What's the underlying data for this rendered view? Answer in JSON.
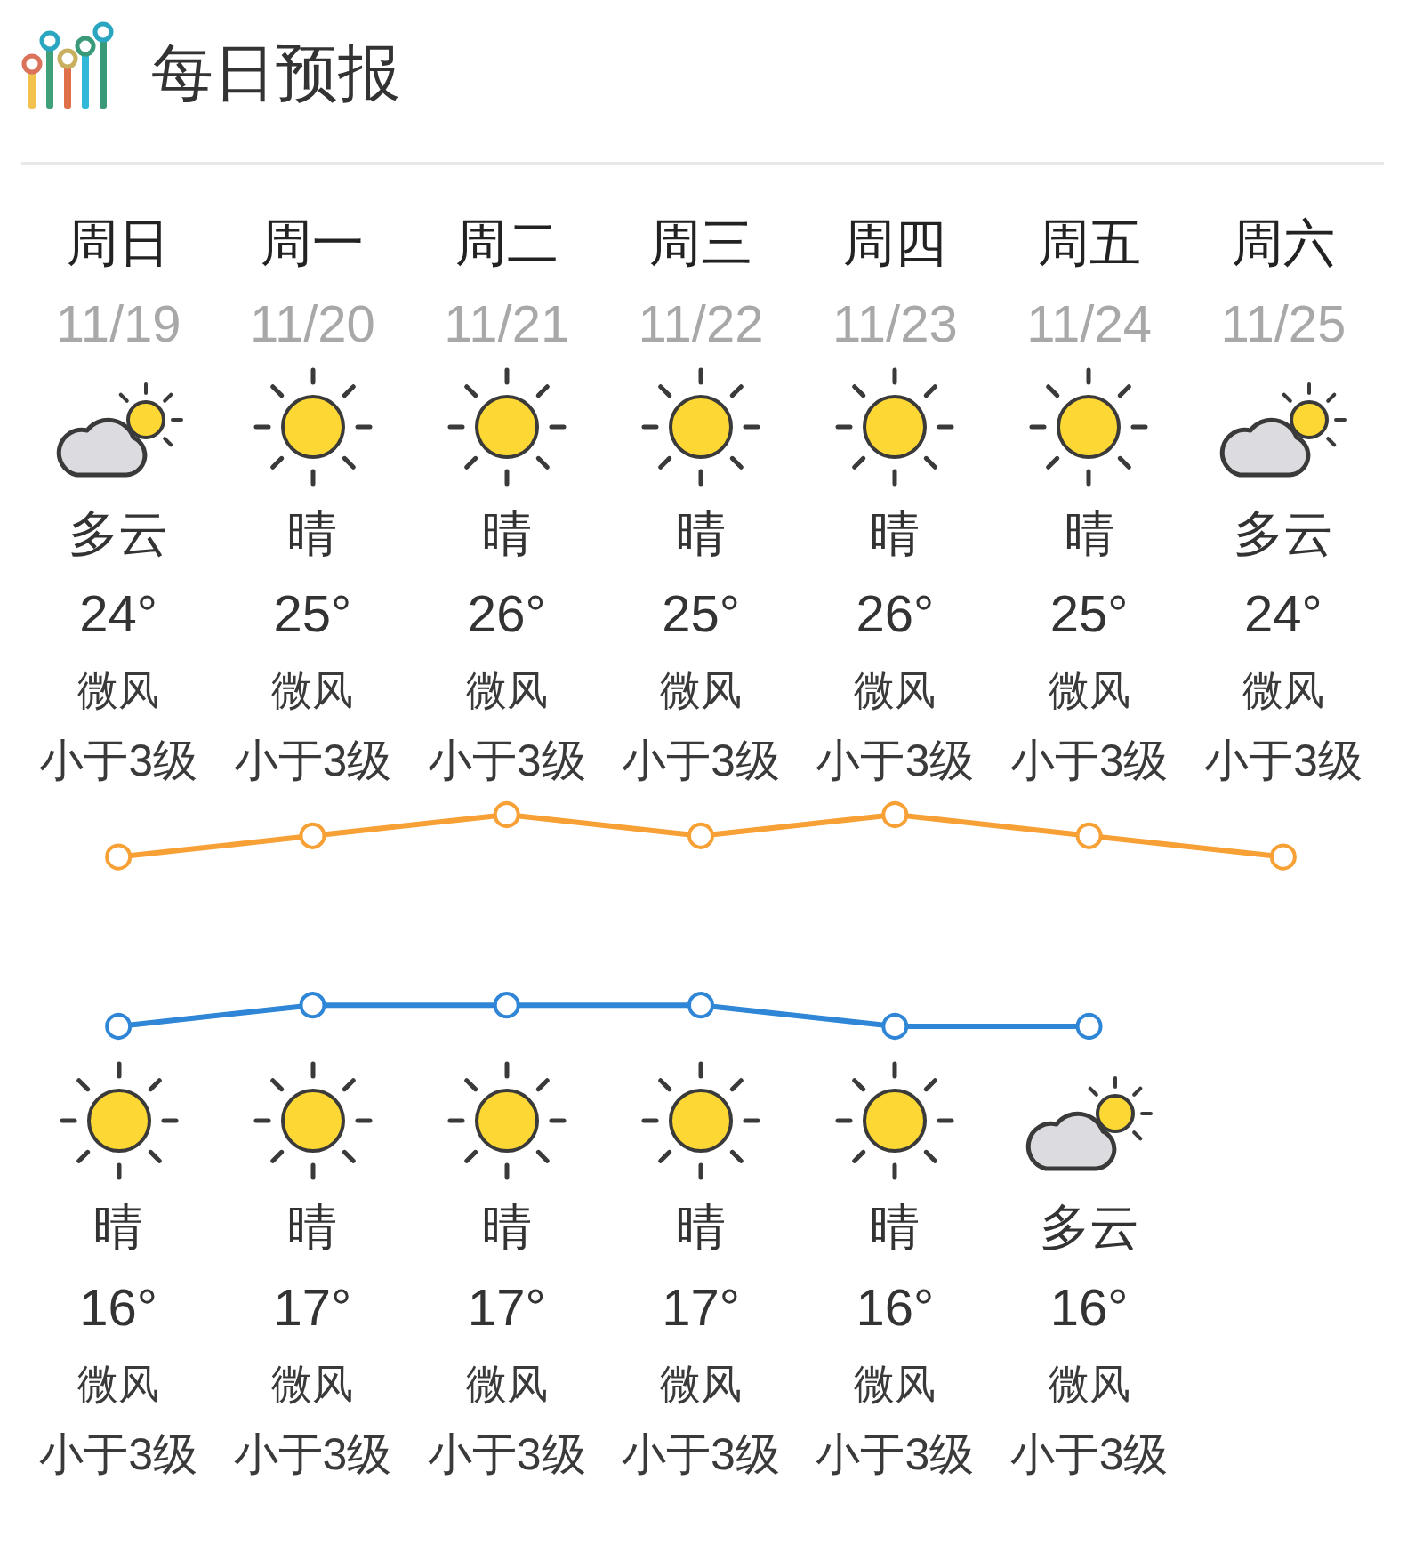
{
  "chart_data": {
    "type": "line",
    "title": "每日预报",
    "categories": [
      "周日",
      "周一",
      "周二",
      "周三",
      "周四",
      "周五",
      "周六"
    ],
    "series": [
      {
        "color": "#f7a035",
        "values": [
          24,
          25,
          26,
          25,
          26,
          25,
          24
        ],
        "value_labels": [
          "24°",
          "25°",
          "26°",
          "25°",
          "26°",
          "25°",
          "24°"
        ]
      },
      {
        "color": "#2f86d6",
        "values": [
          16,
          17,
          17,
          17,
          16,
          16,
          null
        ],
        "value_labels": [
          "16°",
          "17°",
          "17°",
          "17°",
          "16°",
          "16°",
          null
        ]
      }
    ],
    "tick_labels": "x",
    "marker": "circle",
    "line_style": "solid",
    "annotations": [
      "11/19",
      "11/20",
      "11/21",
      "11/22",
      "11/23",
      "11/24",
      "11/25",
      "多云",
      "晴",
      "晴",
      "晴",
      "晴",
      "晴",
      "多云",
      "微风",
      "微风",
      "微风",
      "微风",
      "微风",
      "微风",
      "微风",
      "小于3级",
      "小于3级",
      "小于3级",
      "小于3级",
      "小于3级",
      "小于3级",
      "小于3级",
      "晴",
      "晴",
      "晴",
      "晴",
      "晴",
      "多云",
      "微风",
      "微风",
      "微风",
      "微风",
      "微风",
      "微风",
      "小于3级",
      "小于3级",
      "小于3级",
      "小于3级",
      "小于3级",
      "小于3级"
    ]
  }
}
